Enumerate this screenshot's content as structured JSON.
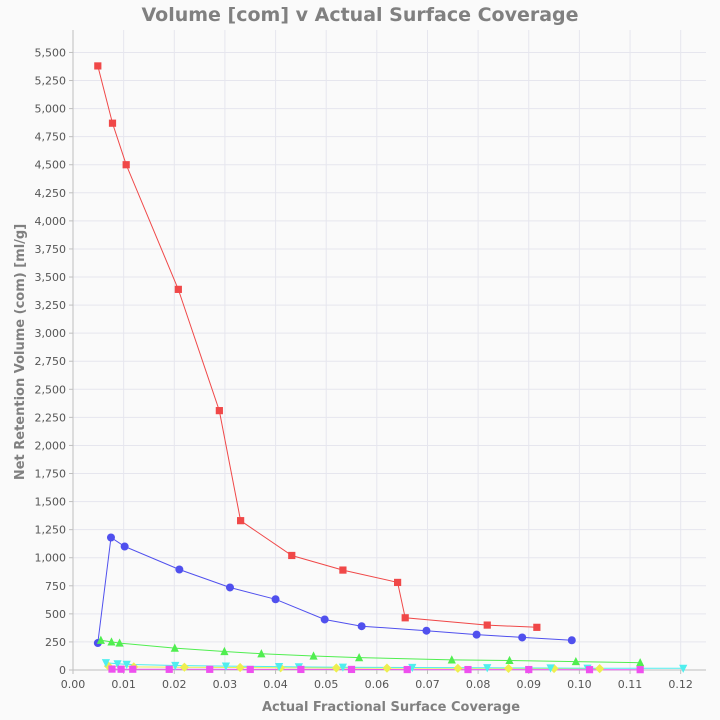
{
  "chart_data": {
    "type": "scatter",
    "title": "Volume [com] v Actual Surface Coverage",
    "xlabel": "Actual Fractional Surface Coverage",
    "ylabel": "Net Retention Volume (com) [ml/g]",
    "xlim": [
      0,
      0.125
    ],
    "ylim": [
      0,
      5700
    ],
    "xticks": [
      "0.00",
      "0.01",
      "0.02",
      "0.03",
      "0.04",
      "0.05",
      "0.06",
      "0.07",
      "0.08",
      "0.09",
      "0.10",
      "0.11",
      "0.12"
    ],
    "xtick_values": [
      0,
      0.01,
      0.02,
      0.03,
      0.04,
      0.05,
      0.06,
      0.07,
      0.08,
      0.09,
      0.1,
      0.11,
      0.12
    ],
    "yticks": [
      "0",
      "250",
      "500",
      "750",
      "1,000",
      "1,250",
      "1,500",
      "1,750",
      "2,000",
      "2,250",
      "2,500",
      "2,750",
      "3,000",
      "3,250",
      "3,500",
      "3,750",
      "4,000",
      "4,250",
      "4,500",
      "4,750",
      "5,000",
      "5,250",
      "5,500"
    ],
    "ytick_values": [
      0,
      250,
      500,
      750,
      1000,
      1250,
      1500,
      1750,
      2000,
      2250,
      2500,
      2750,
      3000,
      3250,
      3500,
      3750,
      4000,
      4250,
      4500,
      4750,
      5000,
      5250,
      5500
    ],
    "grid": true,
    "legend": "none",
    "series": [
      {
        "color": "#f04848",
        "marker": "square",
        "x": [
          0.0049,
          0.0078,
          0.0105,
          0.0208,
          0.0289,
          0.0331,
          0.0432,
          0.0533,
          0.0641,
          0.0656,
          0.0818,
          0.0916
        ],
        "y": [
          5380,
          4870,
          4500,
          3390,
          2310,
          1330,
          1020,
          890,
          780,
          465,
          400,
          380
        ]
      },
      {
        "color": "#5050ee",
        "marker": "circle",
        "x": [
          0.0049,
          0.0075,
          0.0102,
          0.021,
          0.031,
          0.04,
          0.0497,
          0.057,
          0.0698,
          0.0797,
          0.0887,
          0.0985
        ],
        "y": [
          240,
          1180,
          1100,
          895,
          735,
          630,
          450,
          390,
          350,
          315,
          290,
          265
        ]
      },
      {
        "color": "#50ee50",
        "marker": "triangle-up",
        "x": [
          0.0055,
          0.0076,
          0.0092,
          0.0201,
          0.0299,
          0.0372,
          0.0475,
          0.0565,
          0.0748,
          0.0862,
          0.0993,
          0.112
        ],
        "y": [
          265,
          250,
          240,
          195,
          165,
          145,
          125,
          110,
          90,
          85,
          75,
          65
        ]
      },
      {
        "color": "#eeee50",
        "marker": "diamond",
        "x": [
          0.007,
          0.012,
          0.022,
          0.033,
          0.041,
          0.052,
          0.062,
          0.076,
          0.086,
          0.095,
          0.104
        ],
        "y": [
          35,
          28,
          25,
          22,
          20,
          18,
          17,
          15,
          14,
          13,
          12
        ]
      },
      {
        "color": "#50eeee",
        "marker": "triangle-down",
        "x": [
          0.0065,
          0.0088,
          0.0106,
          0.0202,
          0.0302,
          0.0407,
          0.0446,
          0.0533,
          0.067,
          0.0818,
          0.0943,
          0.1016,
          0.1205
        ],
        "y": [
          65,
          55,
          50,
          40,
          35,
          30,
          28,
          25,
          22,
          20,
          18,
          16,
          15
        ]
      },
      {
        "color": "#ee50ee",
        "marker": "square",
        "x": [
          0.0077,
          0.0095,
          0.0118,
          0.019,
          0.027,
          0.035,
          0.045,
          0.055,
          0.066,
          0.078,
          0.09,
          0.102,
          0.112
        ],
        "y": [
          8,
          7,
          7,
          6,
          6,
          5,
          5,
          5,
          4,
          4,
          4,
          3,
          3
        ]
      }
    ]
  }
}
